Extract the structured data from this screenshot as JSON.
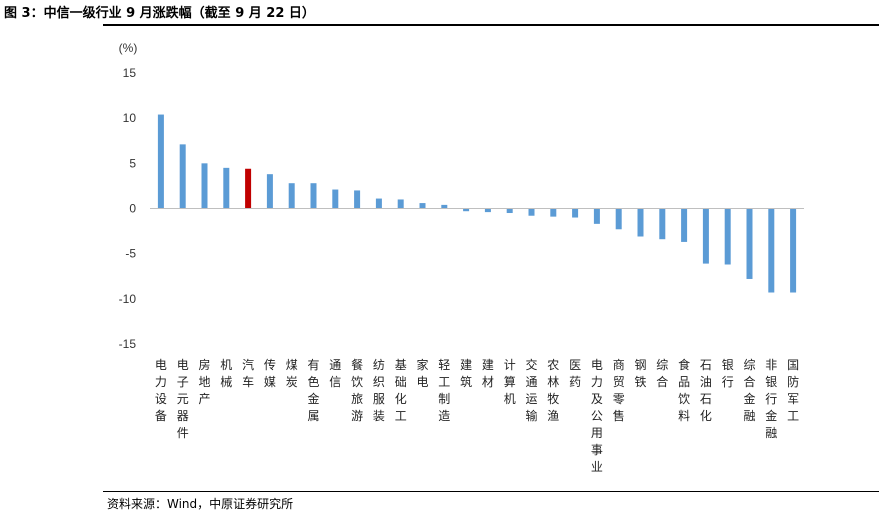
{
  "figure_title": "图 3：中信一级行业 9 月涨跌幅（截至 9 月 22 日）",
  "source_note": "资料来源：Wind，中原证券研究所",
  "colors": {
    "bar": "#5b9bd5",
    "highlight": "#c00000",
    "axis": "#bfbfbf"
  },
  "chart_data": {
    "type": "bar",
    "title": "",
    "xlabel": "",
    "ylabel": "(%)",
    "ylim": [
      -15,
      15
    ],
    "yticks": [
      15,
      10,
      5,
      0,
      -5,
      -10,
      -15
    ],
    "grid": false,
    "legend": "none",
    "highlight_category": "汽车",
    "categories": [
      "电力设备",
      "电子元器件",
      "房地产",
      "机械",
      "汽车",
      "传媒",
      "煤炭",
      "有色金属",
      "通信",
      "餐饮旅游",
      "纺织服装",
      "基础化工",
      "家电",
      "轻工制造",
      "建筑",
      "建材",
      "计算机",
      "交通运输",
      "农林牧渔",
      "医药",
      "电力及公用事业",
      "商贸零售",
      "钢铁",
      "综合",
      "食品饮料",
      "石油石化",
      "银行",
      "综合金融",
      "非银行金融",
      "国防军工"
    ],
    "values": [
      10.4,
      7.1,
      5.0,
      4.5,
      4.4,
      3.8,
      2.8,
      2.8,
      2.1,
      2.0,
      1.1,
      1.0,
      0.6,
      0.4,
      -0.3,
      -0.4,
      -0.5,
      -0.8,
      -0.9,
      -1.0,
      -1.7,
      -2.3,
      -3.1,
      -3.4,
      -3.7,
      -6.1,
      -6.2,
      -7.8,
      -9.3,
      -9.3
    ]
  }
}
